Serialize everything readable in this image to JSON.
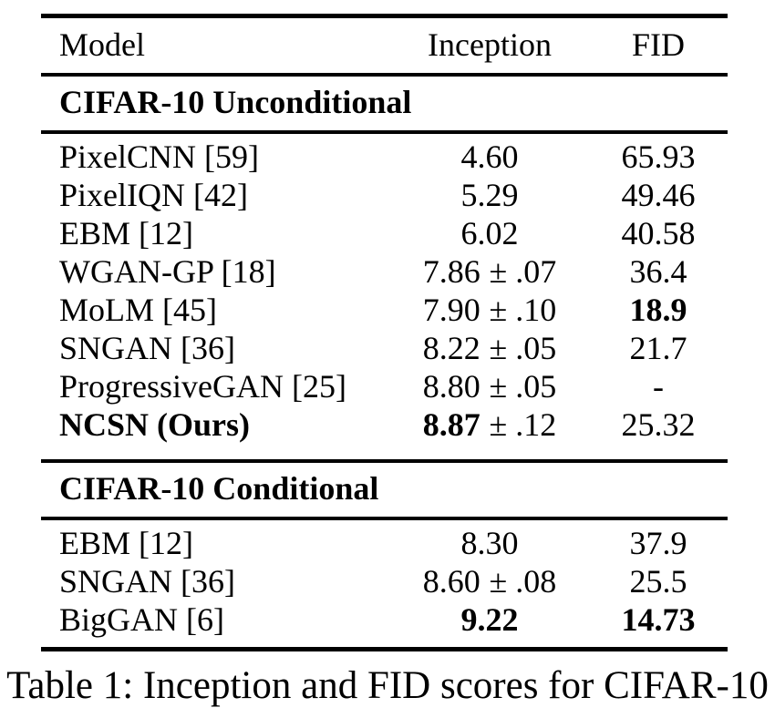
{
  "table": {
    "columns": [
      "Model",
      "Inception",
      "FID"
    ],
    "sections": [
      {
        "header": "CIFAR-10 Unconditional",
        "rows": [
          {
            "model": "PixelCNN [59]",
            "inception": "4.60",
            "inception_err": "",
            "fid": "65.93"
          },
          {
            "model": "PixelIQN [42]",
            "inception": "5.29",
            "inception_err": "",
            "fid": "49.46"
          },
          {
            "model": "EBM [12]",
            "inception": "6.02",
            "inception_err": "",
            "fid": "40.58"
          },
          {
            "model": "WGAN-GP [18]",
            "inception": "7.86",
            "inception_err": "± .07",
            "fid": "36.4"
          },
          {
            "model": "MoLM [45]",
            "inception": "7.90",
            "inception_err": "± .10",
            "fid": "18.9"
          },
          {
            "model": "SNGAN [36]",
            "inception": "8.22",
            "inception_err": "± .05",
            "fid": "21.7"
          },
          {
            "model": "ProgressiveGAN [25]",
            "inception": "8.80",
            "inception_err": "± .05",
            "fid": "-"
          },
          {
            "model": "NCSN (Ours)",
            "inception": "8.87",
            "inception_err": "± .12",
            "fid": "25.32"
          }
        ]
      },
      {
        "header": "CIFAR-10 Conditional",
        "rows": [
          {
            "model": "EBM [12]",
            "inception": "8.30",
            "inception_err": "",
            "fid": "37.9"
          },
          {
            "model": "SNGAN [36]",
            "inception": "8.60",
            "inception_err": "± .08",
            "fid": "25.5"
          },
          {
            "model": "BigGAN [6]",
            "inception": "9.22",
            "inception_err": "",
            "fid": "14.73"
          }
        ]
      }
    ]
  },
  "caption": "Table 1: Inception and FID scores for CIFAR-10"
}
